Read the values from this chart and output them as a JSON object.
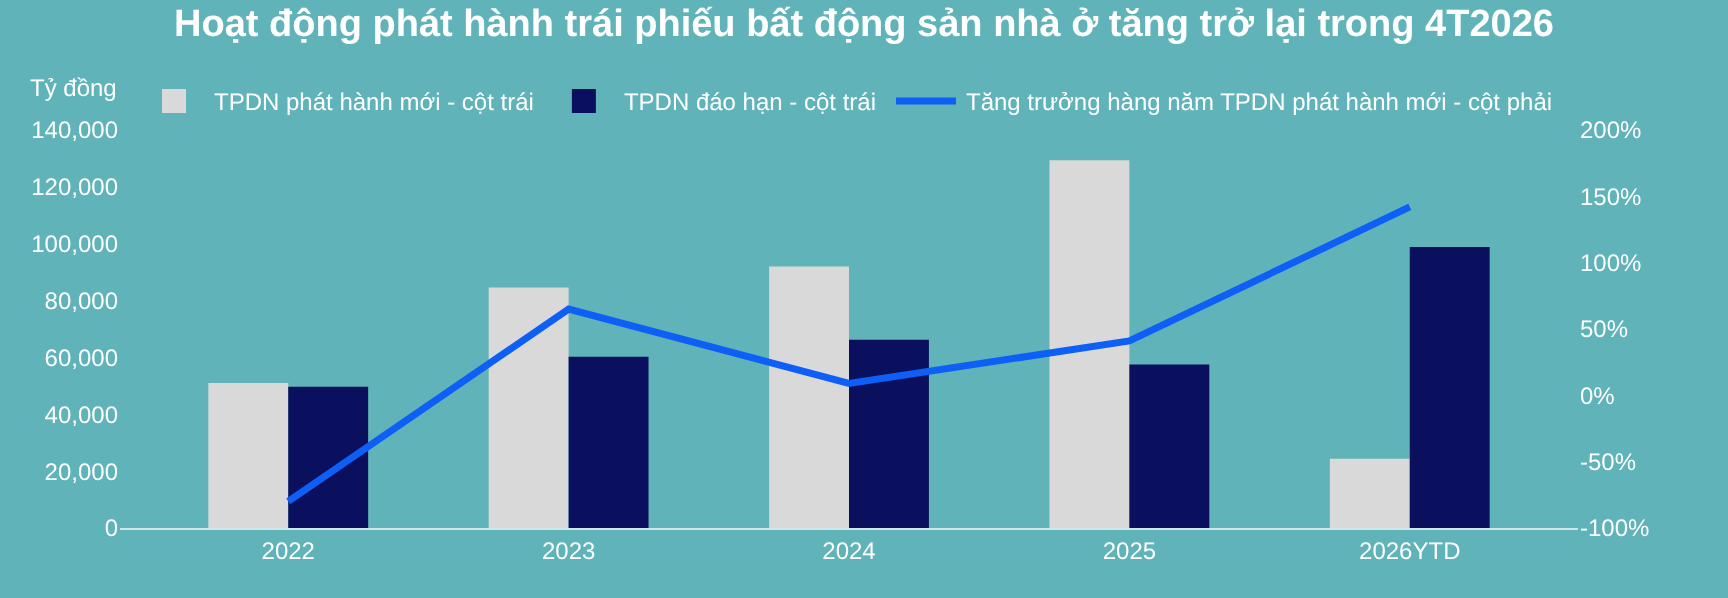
{
  "chart_data": {
    "type": "bar",
    "title": "Hoạt động phát hành trái phiếu bất động sản nhà ở tăng trở lại trong 4T2026",
    "ylabel": "Tỷ đồng",
    "categories": [
      "2022",
      "2023",
      "2024",
      "2025",
      "2026YTD"
    ],
    "series": [
      {
        "name": "TPDN phát hành mới - cột trái",
        "color": "#d9d9d9",
        "values": [
          51000,
          84600,
          92000,
          129400,
          24400
        ]
      },
      {
        "name": "TPDN đáo hạn - cột trái",
        "color": "#0a0f5e",
        "values": [
          49700,
          60200,
          66200,
          57500,
          98800
        ]
      },
      {
        "name": "Tăng trưởng hàng năm TPDN phát hành mới - cột phải",
        "type": "line",
        "axis": "y2",
        "color": "#0d5ff5",
        "values": [
          -80,
          65,
          9,
          41,
          142
        ]
      }
    ],
    "ylim": [
      0,
      140000
    ],
    "yticks": [
      {
        "value": 0,
        "label": "0"
      },
      {
        "value": 20000,
        "label": "20,000"
      },
      {
        "value": 40000,
        "label": "40,000"
      },
      {
        "value": 60000,
        "label": "60,000"
      },
      {
        "value": 80000,
        "label": "80,000"
      },
      {
        "value": 100000,
        "label": "100,000"
      },
      {
        "value": 120000,
        "label": "120,000"
      },
      {
        "value": 140000,
        "label": "140,000"
      }
    ],
    "y2lim": [
      -100,
      200
    ],
    "y2ticks": [
      {
        "value": -100,
        "label": "-100%"
      },
      {
        "value": -50,
        "label": "-50%"
      },
      {
        "value": 0,
        "label": "0%"
      },
      {
        "value": 50,
        "label": "50%"
      },
      {
        "value": 100,
        "label": "100%"
      },
      {
        "value": 150,
        "label": "150%"
      },
      {
        "value": 200,
        "label": "200%"
      }
    ],
    "legend": "top",
    "grid": false,
    "marker": "none",
    "line_style": "solid"
  }
}
